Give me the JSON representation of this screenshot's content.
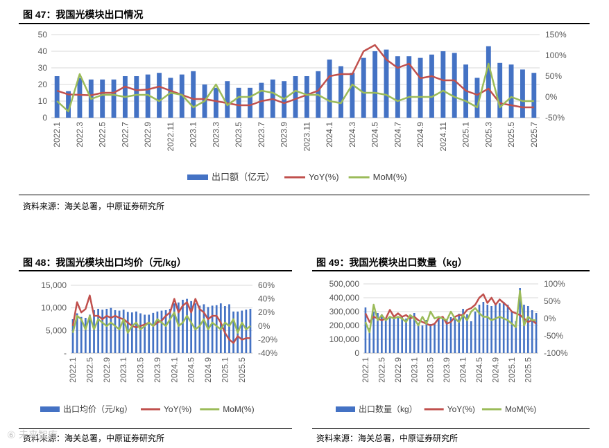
{
  "watermark": "⑥ 未来智库",
  "chart_data": [
    {
      "type": "bar",
      "figure": "图 47：",
      "title": "我国光模块出口情况",
      "source": "资料来源：海关总署，中原证券研究所",
      "categories": [
        "2022.1",
        "2022.2",
        "2022.3",
        "2022.4",
        "2022.5",
        "2022.6",
        "2022.7",
        "2022.8",
        "2022.9",
        "2022.10",
        "2022.11",
        "2022.12",
        "2023.1",
        "2023.2",
        "2023.3",
        "2023.4",
        "2023.5",
        "2023.6",
        "2023.7",
        "2023.8",
        "2023.9",
        "2023.10",
        "2023.11",
        "2023.12",
        "2024.1",
        "2024.2",
        "2024.3",
        "2024.4",
        "2024.5",
        "2024.6",
        "2024.7",
        "2024.8",
        "2024.9",
        "2024.10",
        "2024.11",
        "2024.12",
        "2025.1",
        "2025.2",
        "2025.3",
        "2025.4",
        "2025.5",
        "2025.6",
        "2025.7"
      ],
      "tick_labels": [
        "2022.1",
        "2022.3",
        "2022.5",
        "2022.7",
        "2022.9",
        "2022.11",
        "2023.1",
        "2023.3",
        "2023.5",
        "2023.7",
        "2023.9",
        "2023.11",
        "2024.1",
        "2024.3",
        "2024.5",
        "2024.7",
        "2024.9",
        "2024.11",
        "2025.1",
        "2025.3",
        "2025.5",
        "2025.7"
      ],
      "left_ticks": [
        "0",
        "10",
        "20",
        "30",
        "40",
        "50"
      ],
      "right_ticks": [
        "-50%",
        "0%",
        "50%",
        "100%",
        "150%"
      ],
      "ylim": [
        0,
        50
      ],
      "y2lim": [
        -50,
        150
      ],
      "series": [
        {
          "name": "出口额（亿元）",
          "kind": "bar",
          "axis": "left",
          "color": "#4472C4",
          "values": [
            25,
            16,
            24,
            23,
            23,
            23,
            25,
            25,
            26,
            27,
            24,
            26,
            28,
            20,
            18,
            22,
            18,
            18,
            21,
            23,
            22,
            25,
            25,
            28,
            35,
            31,
            27,
            36,
            40,
            41,
            37,
            37,
            36,
            38,
            40,
            39,
            32,
            24,
            43,
            33,
            32,
            29,
            27
          ]
        },
        {
          "name": "YoY(%)",
          "kind": "line",
          "axis": "right",
          "color": "#C0504D",
          "values": [
            15,
            6,
            5,
            4,
            10,
            10,
            25,
            16,
            18,
            25,
            15,
            5,
            -5,
            -5,
            -10,
            -15,
            -20,
            -20,
            -10,
            -5,
            -15,
            -5,
            5,
            15,
            50,
            55,
            55,
            110,
            125,
            90,
            70,
            80,
            45,
            50,
            40,
            40,
            15,
            5,
            20,
            -15,
            -20,
            -25,
            -25
          ]
        },
        {
          "name": "MoM(%)",
          "kind": "line",
          "axis": "right",
          "color": "#9BBB59",
          "values": [
            -10,
            -35,
            55,
            -5,
            5,
            5,
            0,
            5,
            5,
            -10,
            10,
            5,
            -25,
            -10,
            30,
            -20,
            0,
            0,
            15,
            10,
            -5,
            15,
            5,
            5,
            -10,
            -15,
            30,
            10,
            10,
            5,
            -10,
            0,
            0,
            0,
            15,
            0,
            -10,
            -25,
            80,
            -25,
            0,
            -10,
            -10
          ]
        }
      ]
    },
    {
      "type": "bar",
      "figure": "图 48：",
      "title": "我国光模块出口均价（元/kg）",
      "source": "资料来源：海关总署，中原证券研究所",
      "categories": [
        "2022.1",
        "2022.2",
        "2022.3",
        "2022.4",
        "2022.5",
        "2022.6",
        "2022.7",
        "2022.8",
        "2022.9",
        "2022.10",
        "2022.11",
        "2022.12",
        "2023.1",
        "2023.2",
        "2023.3",
        "2023.4",
        "2023.5",
        "2023.6",
        "2023.7",
        "2023.8",
        "2023.9",
        "2023.10",
        "2023.11",
        "2023.12",
        "2024.1",
        "2024.2",
        "2024.3",
        "2024.4",
        "2024.5",
        "2024.6",
        "2024.7",
        "2024.8",
        "2024.9",
        "2024.10",
        "2024.11",
        "2024.12",
        "2025.1",
        "2025.2",
        "2025.3",
        "2025.4",
        "2025.5",
        "2025.6",
        "2025.7"
      ],
      "tick_labels": [
        "2022.1",
        "2022.5",
        "2022.9",
        "2023.1",
        "2023.5",
        "2023.9",
        "2024.1",
        "2024.5",
        "2024.9",
        "2025.1",
        "2025.5"
      ],
      "left_ticks": [
        "-",
        "5,000",
        "10,000",
        "15,000"
      ],
      "right_ticks": [
        "-40%",
        "-20%",
        "0%",
        "20%",
        "40%",
        "60%"
      ],
      "ylim": [
        0,
        15000
      ],
      "y2lim": [
        -40,
        60
      ],
      "series": [
        {
          "name": "出口均价（元/kg）",
          "kind": "bar",
          "axis": "left",
          "color": "#4472C4",
          "values": [
            7500,
            8800,
            8000,
            7800,
            8500,
            9500,
            9800,
            9600,
            9800,
            10000,
            9500,
            9400,
            9600,
            9100,
            9000,
            9200,
            8800,
            8500,
            8500,
            8900,
            9200,
            9400,
            9500,
            9800,
            11000,
            11200,
            11800,
            12000,
            11500,
            11000,
            10500,
            10800,
            10200,
            10500,
            10600,
            11000,
            10400,
            10800,
            9200,
            9200,
            9400,
            9600,
            9800
          ]
        },
        {
          "name": "YoY(%)",
          "kind": "line",
          "axis": "right",
          "color": "#C0504D",
          "values": [
            0,
            35,
            20,
            25,
            45,
            15,
            15,
            10,
            15,
            12,
            15,
            12,
            10,
            5,
            0,
            -2,
            0,
            2,
            5,
            0,
            5,
            8,
            15,
            20,
            40,
            20,
            30,
            35,
            20,
            40,
            25,
            20,
            10,
            15,
            15,
            5,
            -10,
            -20,
            -25,
            -15,
            -20,
            -18,
            -18
          ]
        },
        {
          "name": "MoM(%)",
          "kind": "line",
          "axis": "right",
          "color": "#9BBB59",
          "values": [
            -10,
            15,
            10,
            -5,
            15,
            -5,
            10,
            5,
            0,
            5,
            0,
            -5,
            10,
            -10,
            0,
            5,
            -5,
            0,
            5,
            0,
            10,
            5,
            0,
            10,
            20,
            0,
            5,
            15,
            5,
            -5,
            0,
            10,
            -5,
            5,
            0,
            -5,
            5,
            0,
            10,
            -10,
            5,
            -5,
            0
          ]
        }
      ]
    },
    {
      "type": "bar",
      "figure": "图 49：",
      "title": "我国光模块出口数量（kg）",
      "source": "资料来源：海关总署，中原证券研究所",
      "categories": [
        "2022.1",
        "2022.2",
        "2022.3",
        "2022.4",
        "2022.5",
        "2022.6",
        "2022.7",
        "2022.8",
        "2022.9",
        "2022.10",
        "2022.11",
        "2022.12",
        "2023.1",
        "2023.2",
        "2023.3",
        "2023.4",
        "2023.5",
        "2023.6",
        "2023.7",
        "2023.8",
        "2023.9",
        "2023.10",
        "2023.11",
        "2023.12",
        "2024.1",
        "2024.2",
        "2024.3",
        "2024.4",
        "2024.5",
        "2024.6",
        "2024.7",
        "2024.8",
        "2024.9",
        "2024.10",
        "2024.11",
        "2024.12",
        "2025.1",
        "2025.2",
        "2025.3",
        "2025.4",
        "2025.5",
        "2025.6",
        "2025.7"
      ],
      "tick_labels": [
        "2022.1",
        "2022.5",
        "2022.9",
        "2023.1",
        "2023.5",
        "2023.9",
        "2024.1",
        "2024.5",
        "2024.9",
        "2025.1",
        "2025.5"
      ],
      "left_ticks": [
        "0",
        "100,000",
        "200,000",
        "300,000",
        "400,000",
        "500,000"
      ],
      "right_ticks": [
        "-100%",
        "-50%",
        "0%",
        "50%",
        "100%"
      ],
      "ylim": [
        0,
        500000
      ],
      "y2lim": [
        -100,
        100
      ],
      "series": [
        {
          "name": "出口数量（kg）",
          "kind": "bar",
          "axis": "left",
          "color": "#4472C4",
          "values": [
            330000,
            180000,
            300000,
            290000,
            280000,
            250000,
            260000,
            260000,
            260000,
            270000,
            250000,
            270000,
            290000,
            220000,
            200000,
            240000,
            210000,
            210000,
            250000,
            260000,
            240000,
            260000,
            260000,
            285000,
            320000,
            280000,
            230000,
            300000,
            350000,
            370000,
            350000,
            340000,
            350000,
            360000,
            370000,
            350000,
            300000,
            230000,
            470000,
            350000,
            340000,
            310000,
            290000
          ]
        },
        {
          "name": "YoY(%)",
          "kind": "line",
          "axis": "right",
          "color": "#C0504D",
          "values": [
            15,
            -10,
            5,
            0,
            -5,
            0,
            25,
            5,
            15,
            5,
            10,
            0,
            5,
            -5,
            -10,
            -15,
            -20,
            -15,
            0,
            5,
            -15,
            -10,
            5,
            10,
            10,
            25,
            30,
            40,
            60,
            70,
            45,
            60,
            40,
            55,
            45,
            35,
            20,
            15,
            10,
            0,
            -10,
            -5,
            -15
          ]
        },
        {
          "name": "MoM(%)",
          "kind": "line",
          "axis": "right",
          "color": "#9BBB59",
          "values": [
            -10,
            -40,
            40,
            -5,
            10,
            -5,
            5,
            0,
            5,
            0,
            -10,
            10,
            0,
            -20,
            5,
            -15,
            20,
            0,
            5,
            0,
            -5,
            20,
            0,
            -10,
            10,
            -5,
            20,
            30,
            15,
            5,
            5,
            -5,
            0,
            5,
            0,
            -5,
            -15,
            -25,
            80,
            -20,
            5,
            -5,
            -5
          ]
        }
      ]
    }
  ]
}
